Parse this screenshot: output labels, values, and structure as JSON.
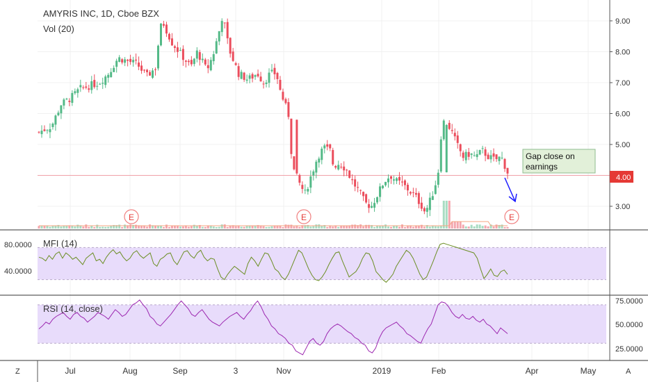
{
  "header": {
    "symbol_title": "AMYRIS INC, 1D, Cboe BZX",
    "volume_label": "Vol (20)"
  },
  "colors": {
    "up": "#53b987",
    "down": "#eb4d5c",
    "mfi_line": "#6b8e23",
    "rsi_line": "#9c27b0",
    "band_fill": "#e8dcfb",
    "price_line": "#f0a0a8",
    "price_badge": "#e53935",
    "annotation_bg": "#e2f0d9",
    "annotation_border": "#8fbc8f",
    "arrow": "#1a1aff",
    "earnings": "#e53935",
    "volume_ma": "#f4a582"
  },
  "price_badge": "4.00",
  "annotation": {
    "line1": "Gap close on",
    "line2": "earnings"
  },
  "earnings_marker": "E",
  "bottom_corner_left": "Z",
  "bottom_corner_right": "A",
  "chart_data": [
    {
      "type": "candlestick",
      "title": "AMYRIS INC, 1D, Cboe BZX",
      "x_ticks": [
        "Jul",
        "Aug",
        "Sep",
        "3",
        "Nov",
        "2019",
        "Feb",
        "Apr",
        "May"
      ],
      "y_ticks": [
        "3.00",
        "4.00",
        "5.00",
        "6.00",
        "7.00",
        "8.00",
        "9.00"
      ],
      "ylim": [
        2.3,
        9.6
      ],
      "grid": true,
      "horizontal_line": 4.0,
      "close_path": [
        [
          0,
          5.4
        ],
        [
          0.04,
          5.6
        ],
        [
          0.07,
          6.3
        ],
        [
          0.1,
          6.5
        ],
        [
          0.13,
          6.8
        ],
        [
          0.16,
          6.9
        ],
        [
          0.19,
          7.0
        ],
        [
          0.22,
          7.3
        ],
        [
          0.25,
          7.8
        ],
        [
          0.28,
          7.7
        ],
        [
          0.31,
          7.6
        ],
        [
          0.34,
          7.2
        ],
        [
          0.37,
          7.5
        ],
        [
          0.38,
          8.6
        ],
        [
          0.39,
          9.0
        ],
        [
          0.42,
          8.3
        ],
        [
          0.45,
          7.9
        ],
        [
          0.48,
          7.5
        ],
        [
          0.5,
          8.0
        ],
        [
          0.53,
          7.4
        ],
        [
          0.55,
          7.9
        ],
        [
          0.57,
          8.7
        ],
        [
          0.58,
          9.2
        ],
        [
          0.6,
          8.1
        ],
        [
          0.63,
          7.3
        ],
        [
          0.66,
          7.1
        ],
        [
          0.69,
          7.3
        ],
        [
          0.71,
          7.0
        ],
        [
          0.73,
          7.3
        ],
        [
          0.75,
          7.3
        ],
        [
          0.76,
          6.8
        ],
        [
          0.78,
          6.2
        ],
        [
          0.79,
          5.9
        ],
        [
          0.8,
          4.3
        ],
        [
          0.82,
          3.8
        ],
        [
          0.84,
          3.4
        ],
        [
          0.86,
          4.0
        ],
        [
          0.88,
          4.6
        ],
        [
          0.9,
          4.9
        ],
        [
          0.92,
          4.8
        ],
        [
          0.93,
          4.3
        ],
        [
          0.95,
          4.4
        ],
        [
          0.97,
          4.2
        ],
        [
          0.99,
          3.8
        ],
        [
          1.01,
          3.5
        ],
        [
          1.03,
          3.1
        ],
        [
          1.05,
          3.0
        ],
        [
          1.07,
          3.4
        ],
        [
          1.09,
          3.8
        ],
        [
          1.11,
          4.0
        ],
        [
          1.13,
          3.8
        ],
        [
          1.15,
          3.7
        ],
        [
          1.17,
          3.5
        ],
        [
          1.19,
          3.3
        ],
        [
          1.21,
          3.0
        ],
        [
          1.22,
          2.8
        ],
        [
          1.24,
          3.3
        ],
        [
          1.26,
          4.0
        ],
        [
          1.27,
          5.3
        ],
        [
          1.28,
          5.8
        ],
        [
          1.3,
          5.5
        ],
        [
          1.32,
          5.0
        ],
        [
          1.34,
          4.6
        ],
        [
          1.36,
          4.7
        ],
        [
          1.38,
          4.6
        ],
        [
          1.4,
          4.8
        ],
        [
          1.42,
          4.6
        ],
        [
          1.44,
          4.5
        ],
        [
          1.46,
          4.6
        ],
        [
          1.48,
          4.1
        ]
      ],
      "annotation": "Gap close on earnings"
    },
    {
      "type": "line",
      "title": "MFI (14)",
      "y_ticks": [
        "40.0000",
        "80.0000"
      ],
      "ylim": [
        0,
        100
      ],
      "band": [
        20,
        80
      ],
      "values": [
        62,
        60,
        55,
        65,
        58,
        68,
        72,
        60,
        70,
        65,
        58,
        62,
        55,
        48,
        60,
        65,
        70,
        55,
        58,
        50,
        62,
        70,
        76,
        68,
        72,
        62,
        55,
        60,
        70,
        74,
        65,
        60,
        65,
        70,
        50,
        45,
        58,
        62,
        68,
        70,
        55,
        48,
        60,
        72,
        74,
        65,
        60,
        70,
        75,
        62,
        55,
        60,
        58,
        40,
        25,
        20,
        30,
        38,
        45,
        40,
        35,
        30,
        50,
        62,
        55,
        45,
        58,
        70,
        68,
        55,
        40,
        35,
        25,
        20,
        30,
        45,
        60,
        75,
        70,
        55,
        40,
        28,
        20,
        18,
        25,
        35,
        48,
        60,
        70,
        72,
        55,
        40,
        25,
        30,
        35,
        45,
        60,
        70,
        68,
        55,
        35,
        28,
        20,
        15,
        22,
        30,
        45,
        55,
        65,
        75,
        70,
        60,
        45,
        30,
        20,
        25,
        40,
        55,
        72,
        86,
        88,
        86,
        84,
        82,
        80,
        78,
        76,
        74,
        72,
        70,
        60,
        40,
        22,
        30,
        40,
        28,
        26,
        35,
        38,
        30
      ]
    },
    {
      "type": "line",
      "title": "RSI (14, close)",
      "y_ticks": [
        "25.0000",
        "50.0000",
        "75.0000"
      ],
      "ylim": [
        15,
        80
      ],
      "band": [
        30,
        70
      ],
      "values": [
        45,
        48,
        52,
        50,
        55,
        58,
        60,
        62,
        58,
        55,
        60,
        62,
        58,
        56,
        52,
        55,
        58,
        62,
        60,
        58,
        55,
        60,
        65,
        62,
        58,
        60,
        65,
        70,
        72,
        75,
        70,
        66,
        58,
        55,
        50,
        48,
        52,
        56,
        60,
        65,
        70,
        74,
        70,
        66,
        60,
        58,
        62,
        65,
        60,
        55,
        52,
        50,
        48,
        52,
        55,
        58,
        60,
        62,
        58,
        55,
        60,
        64,
        70,
        74,
        68,
        60,
        55,
        48,
        45,
        40,
        38,
        35,
        30,
        28,
        22,
        20,
        18,
        25,
        32,
        35,
        30,
        28,
        32,
        40,
        45,
        48,
        50,
        48,
        45,
        42,
        40,
        36,
        34,
        30,
        28,
        22,
        20,
        25,
        35,
        42,
        46,
        48,
        50,
        52,
        48,
        45,
        40,
        38,
        35,
        32,
        30,
        38,
        45,
        50,
        60,
        70,
        73,
        72,
        68,
        62,
        58,
        56,
        60,
        56,
        55,
        58,
        54,
        52,
        55,
        50,
        48,
        44,
        40,
        46,
        43,
        40
      ]
    }
  ]
}
